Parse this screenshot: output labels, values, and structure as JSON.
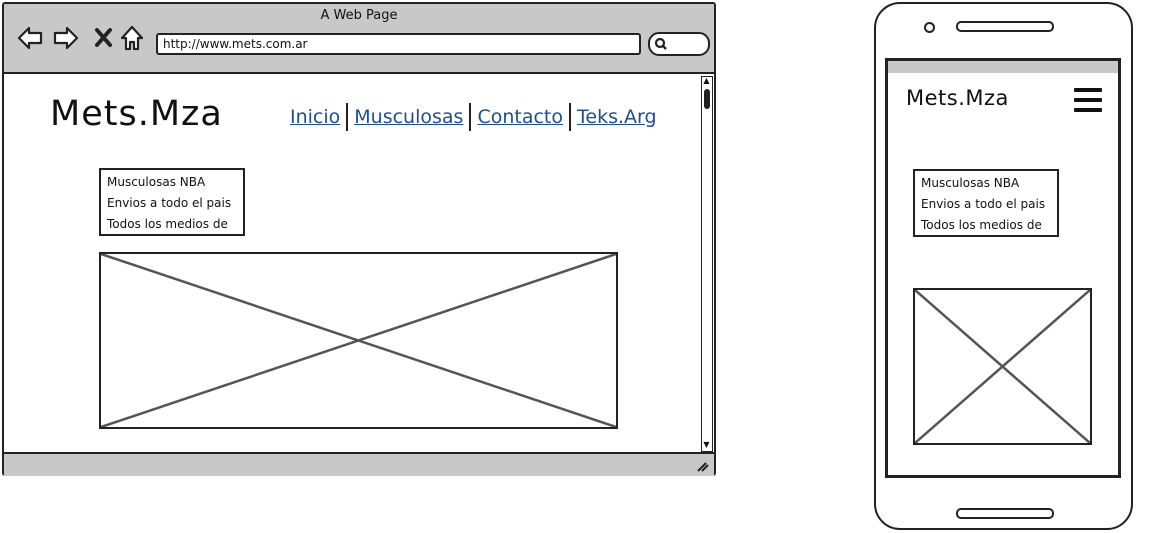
{
  "browser": {
    "title": "A Web Page",
    "url": "http://www.mets.com.ar",
    "nav_icons": [
      "back-icon",
      "forward-icon",
      "close-icon",
      "home-icon"
    ],
    "search_icon": "search-icon"
  },
  "desktop": {
    "logo": "Mets.Mza",
    "nav": [
      {
        "label": "Inicio"
      },
      {
        "label": "Musculosas"
      },
      {
        "label": "Contacto"
      },
      {
        "label": "Teks.Arg"
      }
    ],
    "text_lines": [
      "Musculosas NBA",
      "Envios a todo el pais",
      "Todos los medios de"
    ]
  },
  "mobile": {
    "logo": "Mets.Mza",
    "menu_icon": "hamburger-menu-icon",
    "text_lines": [
      "Musculosas NBA",
      "Envios a todo el pais",
      "Todos los medios de"
    ]
  },
  "colors": {
    "chrome": "#c8c8c8",
    "link": "#1e4f8c",
    "stroke": "#222222"
  }
}
